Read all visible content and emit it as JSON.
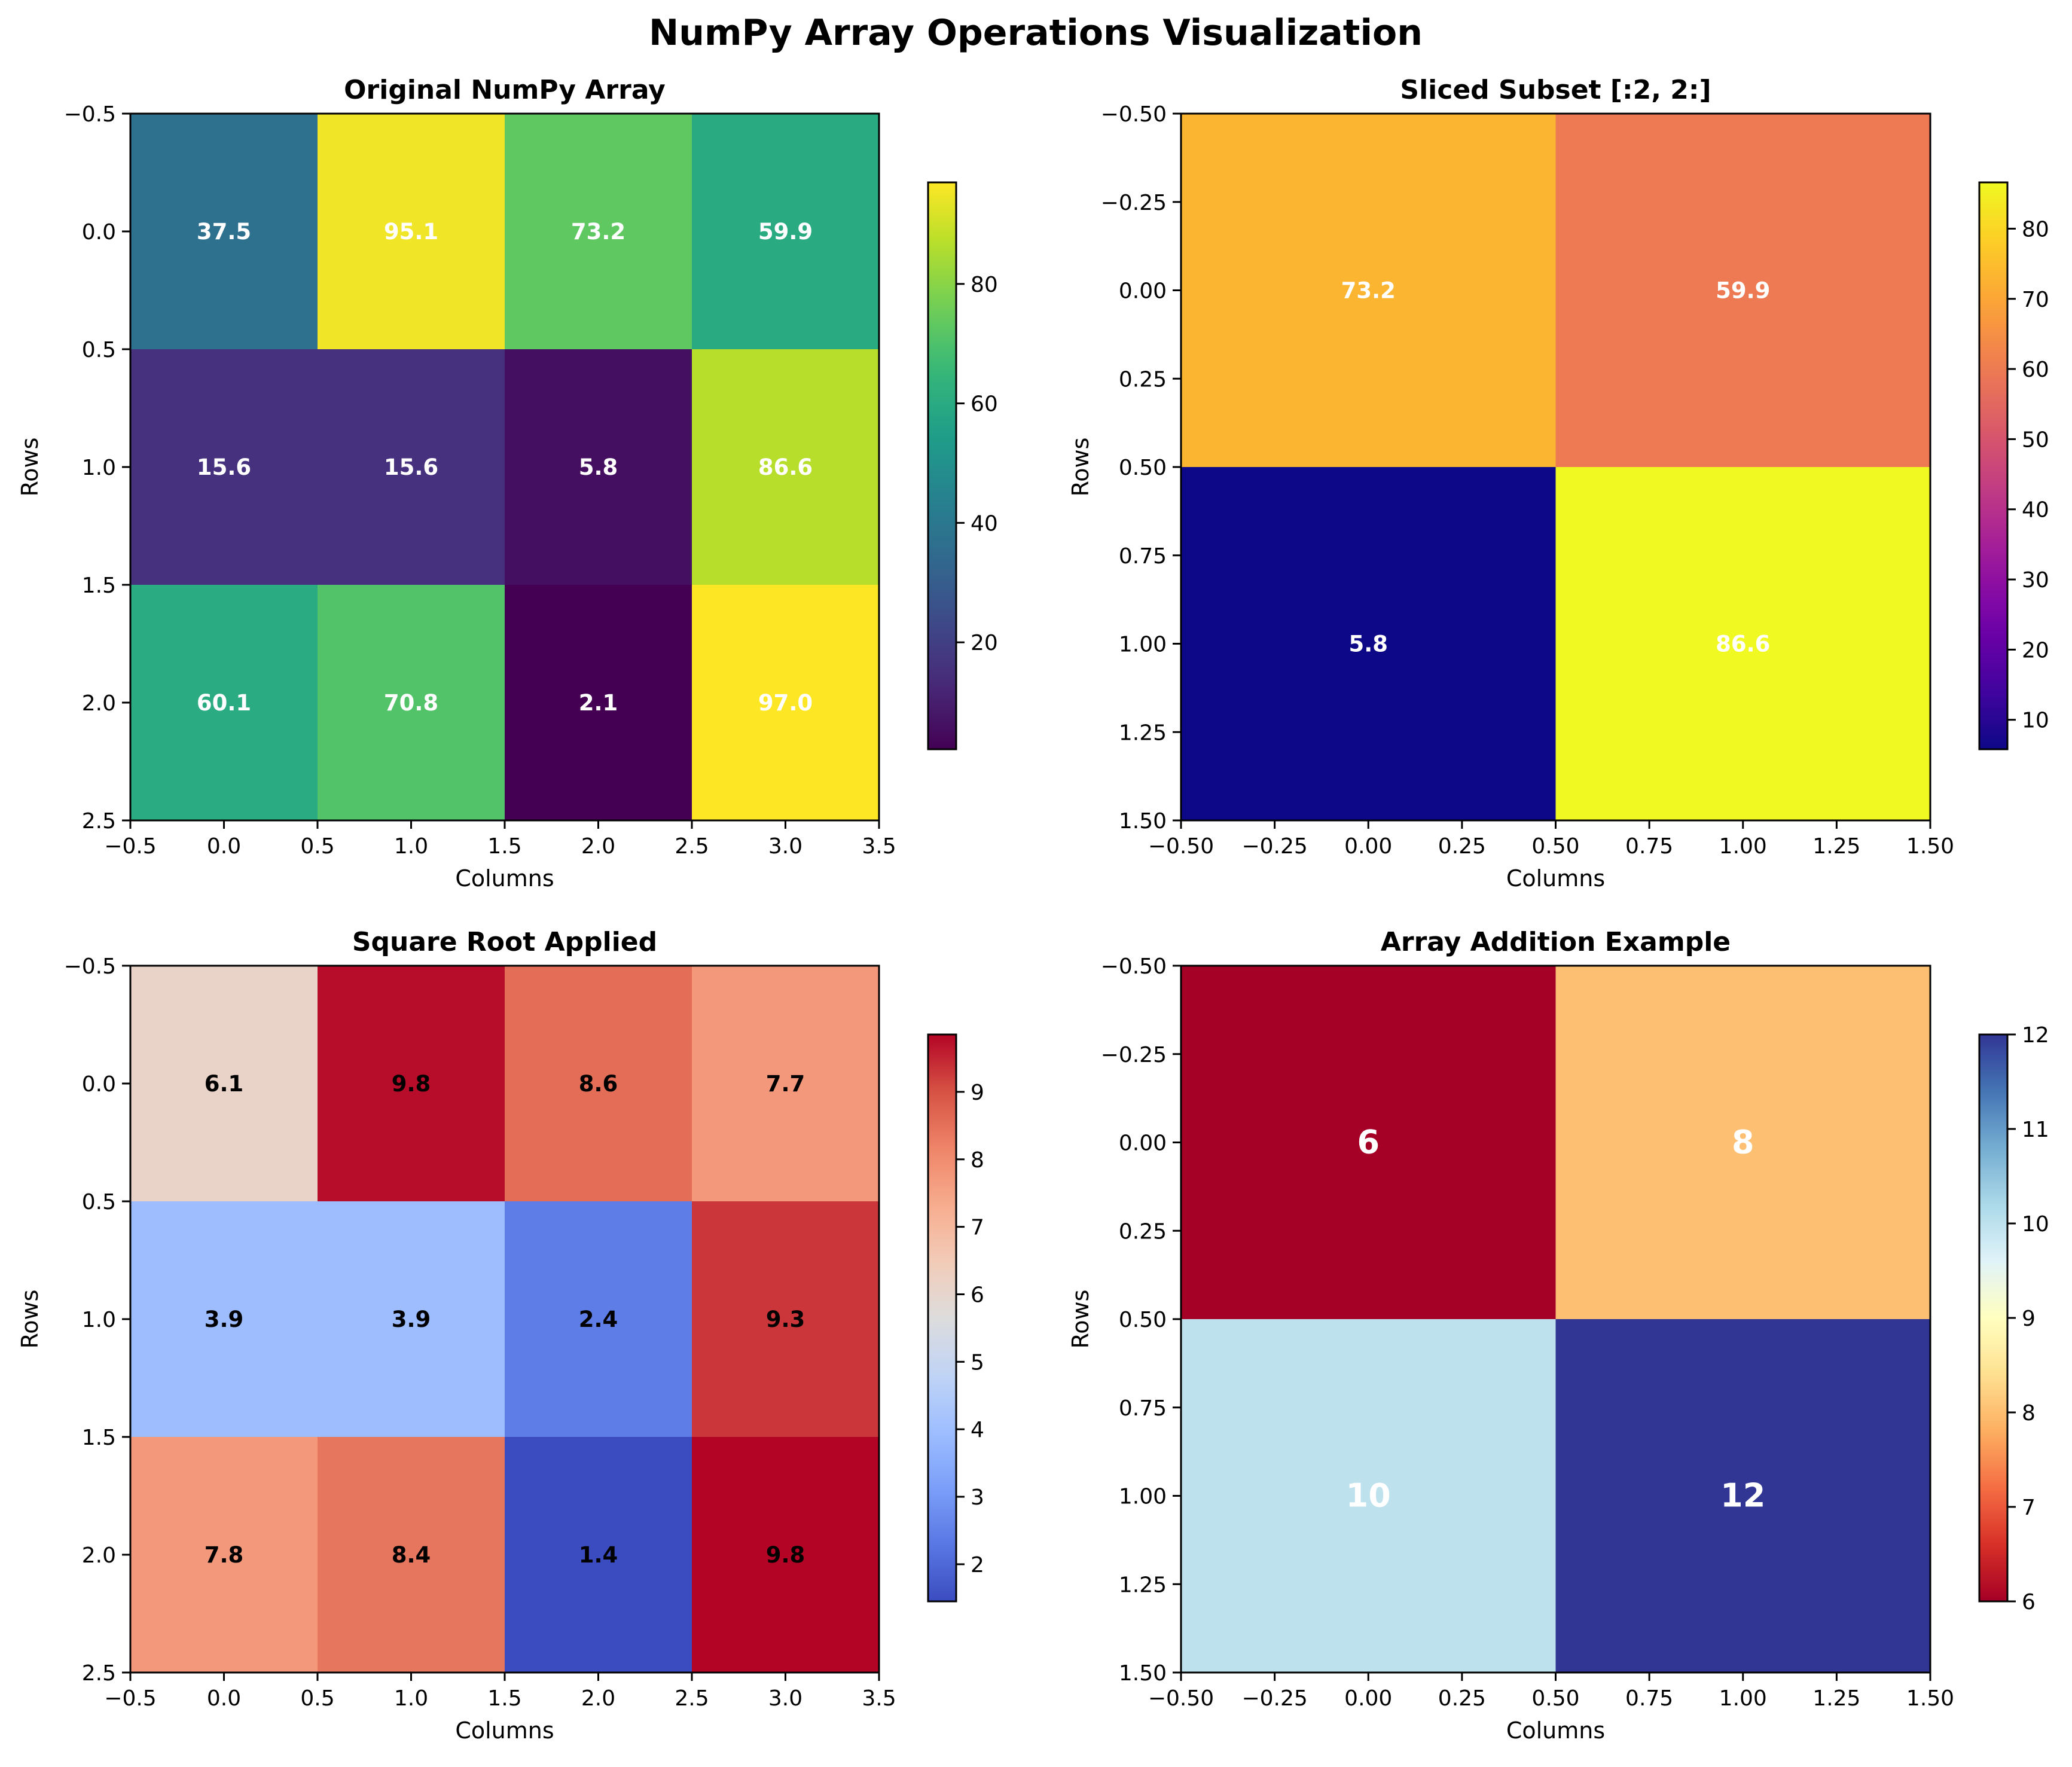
{
  "figure_title": "NumPy Array Operations Visualization",
  "chart_data": [
    {
      "type": "heatmap",
      "title": "Original NumPy Array",
      "xlabel": "Columns",
      "ylabel": "Rows",
      "colormap": "viridis",
      "label_color": "#ffffff",
      "label_size": "small",
      "values": [
        [
          37.5,
          95.1,
          73.2,
          59.9
        ],
        [
          15.6,
          15.6,
          5.8,
          86.6
        ],
        [
          60.1,
          70.8,
          2.1,
          97.0
        ]
      ],
      "cell_labels": [
        [
          "37.5",
          "95.1",
          "73.2",
          "59.9"
        ],
        [
          "15.6",
          "15.6",
          "5.8",
          "86.6"
        ],
        [
          "60.1",
          "70.8",
          "2.1",
          "97.0"
        ]
      ],
      "xlim": [
        -0.5,
        3.5
      ],
      "ylim": [
        2.5,
        -0.5
      ],
      "xticks": [
        "−0.5",
        "0.0",
        "0.5",
        "1.0",
        "1.5",
        "2.0",
        "2.5",
        "3.0",
        "3.5"
      ],
      "yticks": [
        "−0.5",
        "0.0",
        "0.5",
        "1.0",
        "1.5",
        "2.0",
        "2.5"
      ],
      "colorbar_range": [
        2.1,
        97.0
      ],
      "colorbar_ticks": [
        "20",
        "40",
        "60",
        "80"
      ],
      "colorbar_tick_values": [
        20,
        40,
        60,
        80
      ]
    },
    {
      "type": "heatmap",
      "title": "Sliced Subset [:2, 2:]",
      "xlabel": "Columns",
      "ylabel": "Rows",
      "colormap": "plasma",
      "label_color": "#ffffff",
      "label_size": "small",
      "values": [
        [
          73.2,
          59.9
        ],
        [
          5.8,
          86.6
        ]
      ],
      "cell_labels": [
        [
          "73.2",
          "59.9"
        ],
        [
          "5.8",
          "86.6"
        ]
      ],
      "xlim": [
        -0.5,
        1.5
      ],
      "ylim": [
        1.5,
        -0.5
      ],
      "xticks": [
        "−0.50",
        "−0.25",
        "0.00",
        "0.25",
        "0.50",
        "0.75",
        "1.00",
        "1.25",
        "1.50"
      ],
      "yticks": [
        "−0.50",
        "−0.25",
        "0.00",
        "0.25",
        "0.50",
        "0.75",
        "1.00",
        "1.25",
        "1.50"
      ],
      "colorbar_range": [
        5.8,
        86.6
      ],
      "colorbar_ticks": [
        "10",
        "20",
        "30",
        "40",
        "50",
        "60",
        "70",
        "80"
      ],
      "colorbar_tick_values": [
        10,
        20,
        30,
        40,
        50,
        60,
        70,
        80
      ]
    },
    {
      "type": "heatmap",
      "title": "Square Root Applied",
      "xlabel": "Columns",
      "ylabel": "Rows",
      "colormap": "coolwarm",
      "label_color": "#000000",
      "label_size": "small",
      "values": [
        [
          6.12,
          9.75,
          8.56,
          7.74
        ],
        [
          3.95,
          3.95,
          2.41,
          9.31
        ],
        [
          7.75,
          8.41,
          1.45,
          9.85
        ]
      ],
      "cell_labels": [
        [
          "6.1",
          "9.8",
          "8.6",
          "7.7"
        ],
        [
          "3.9",
          "3.9",
          "2.4",
          "9.3"
        ],
        [
          "7.8",
          "8.4",
          "1.4",
          "9.8"
        ]
      ],
      "xlim": [
        -0.5,
        3.5
      ],
      "ylim": [
        2.5,
        -0.5
      ],
      "xticks": [
        "−0.5",
        "0.0",
        "0.5",
        "1.0",
        "1.5",
        "2.0",
        "2.5",
        "3.0",
        "3.5"
      ],
      "yticks": [
        "−0.5",
        "0.0",
        "0.5",
        "1.0",
        "1.5",
        "2.0",
        "2.5"
      ],
      "colorbar_range": [
        1.45,
        9.85
      ],
      "colorbar_ticks": [
        "2",
        "3",
        "4",
        "5",
        "6",
        "7",
        "8",
        "9"
      ],
      "colorbar_tick_values": [
        2,
        3,
        4,
        5,
        6,
        7,
        8,
        9
      ]
    },
    {
      "type": "heatmap",
      "title": "Array Addition Example",
      "xlabel": "Columns",
      "ylabel": "Rows",
      "colormap": "RdYlBu",
      "label_color": "#ffffff",
      "label_size": "large",
      "values": [
        [
          6,
          8
        ],
        [
          10,
          12
        ]
      ],
      "cell_labels": [
        [
          "6",
          "8"
        ],
        [
          "10",
          "12"
        ]
      ],
      "xlim": [
        -0.5,
        1.5
      ],
      "ylim": [
        1.5,
        -0.5
      ],
      "xticks": [
        "−0.50",
        "−0.25",
        "0.00",
        "0.25",
        "0.50",
        "0.75",
        "1.00",
        "1.25",
        "1.50"
      ],
      "yticks": [
        "−0.50",
        "−0.25",
        "0.00",
        "0.25",
        "0.50",
        "0.75",
        "1.00",
        "1.25",
        "1.50"
      ],
      "colorbar_range": [
        6,
        12
      ],
      "colorbar_ticks": [
        "6",
        "7",
        "8",
        "9",
        "10",
        "11",
        "12"
      ],
      "colorbar_tick_values": [
        6,
        7,
        8,
        9,
        10,
        11,
        12
      ]
    }
  ]
}
